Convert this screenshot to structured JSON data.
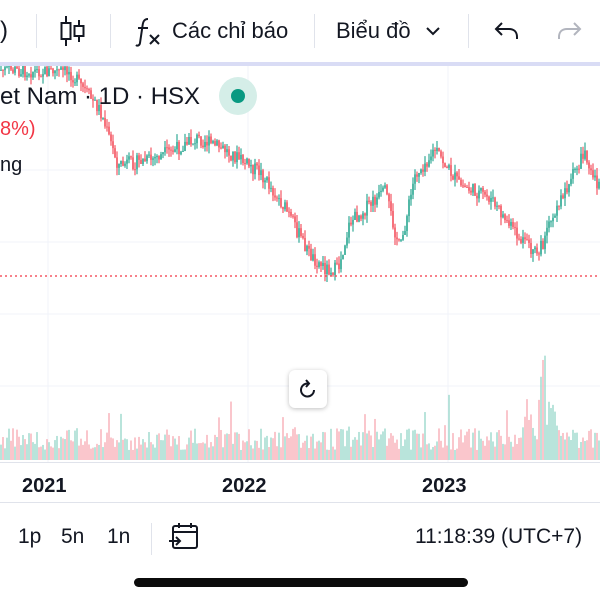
{
  "toolbar": {
    "partial_left_glyph": ")",
    "indicators_label": "Các chỉ báo",
    "chart_type_label": "Biểu đồ"
  },
  "legend": {
    "symbol_title": "et Nam · 1D · HSX",
    "change_text": "8%)",
    "volume_label": "ng",
    "status_color": "#089981"
  },
  "time_axis": {
    "years": [
      "2021",
      "2022",
      "2023"
    ]
  },
  "bottom_bar": {
    "ranges": [
      "1p",
      "5n",
      "1n"
    ],
    "clock": "11:18:39 (UTC+7)"
  },
  "colors": {
    "up": "#089981",
    "down": "#f23645",
    "up_volume": "#a8ddd2",
    "down_volume": "#f8b8bf",
    "price_line": "#f23645"
  },
  "icons": {
    "candles": "candles-icon",
    "indicators": "fx-icon",
    "chevron": "chevron-down-icon",
    "undo": "undo-icon",
    "redo": "redo-icon",
    "reset": "reset-icon",
    "calendar": "calendar-goto-icon"
  }
}
